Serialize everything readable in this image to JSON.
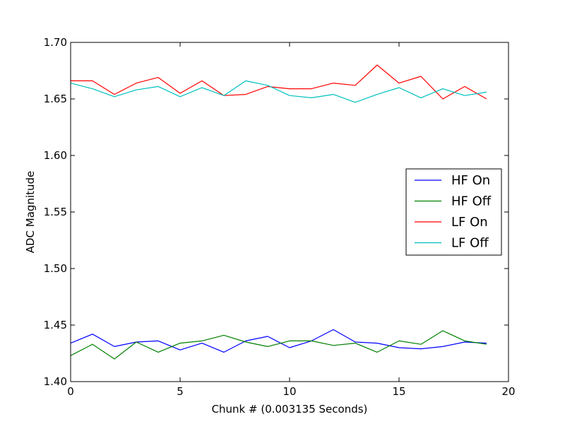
{
  "chart_data": {
    "type": "line",
    "title": "",
    "xlabel": "Chunk # (0.003135 Seconds)",
    "ylabel": "ADC Magnitude",
    "xlim": [
      0,
      20
    ],
    "ylim": [
      1.4,
      1.7
    ],
    "xticks": [
      0,
      5,
      10,
      15,
      20
    ],
    "xtick_labels": [
      "0",
      "5",
      "10",
      "15",
      "20"
    ],
    "yticks": [
      1.4,
      1.45,
      1.5,
      1.55,
      1.6,
      1.65,
      1.7
    ],
    "ytick_labels": [
      "1.40",
      "1.45",
      "1.50",
      "1.55",
      "1.60",
      "1.65",
      "1.70"
    ],
    "grid": false,
    "legend_position": "center-right",
    "x": [
      0,
      1,
      2,
      3,
      4,
      5,
      6,
      7,
      8,
      9,
      10,
      11,
      12,
      13,
      14,
      15,
      16,
      17,
      18,
      19
    ],
    "series": [
      {
        "name": "HF On",
        "color": "#0000ff",
        "values": [
          1.434,
          1.442,
          1.431,
          1.435,
          1.436,
          1.428,
          1.434,
          1.426,
          1.436,
          1.44,
          1.43,
          1.436,
          1.446,
          1.435,
          1.434,
          1.43,
          1.429,
          1.431,
          1.435,
          1.434
        ]
      },
      {
        "name": "HF Off",
        "color": "#008000",
        "values": [
          1.423,
          1.433,
          1.42,
          1.435,
          1.426,
          1.434,
          1.436,
          1.441,
          1.435,
          1.431,
          1.436,
          1.436,
          1.432,
          1.434,
          1.426,
          1.436,
          1.433,
          1.445,
          1.436,
          1.433
        ]
      },
      {
        "name": "LF On",
        "color": "#ff0000",
        "values": [
          1.666,
          1.666,
          1.654,
          1.664,
          1.669,
          1.655,
          1.666,
          1.653,
          1.654,
          1.661,
          1.659,
          1.659,
          1.664,
          1.662,
          1.68,
          1.664,
          1.67,
          1.65,
          1.661,
          1.65
        ]
      },
      {
        "name": "LF Off",
        "color": "#00bfbf",
        "values": [
          1.664,
          1.659,
          1.652,
          1.658,
          1.661,
          1.652,
          1.66,
          1.653,
          1.666,
          1.662,
          1.653,
          1.651,
          1.654,
          1.647,
          1.654,
          1.66,
          1.651,
          1.659,
          1.653,
          1.656
        ]
      }
    ]
  }
}
